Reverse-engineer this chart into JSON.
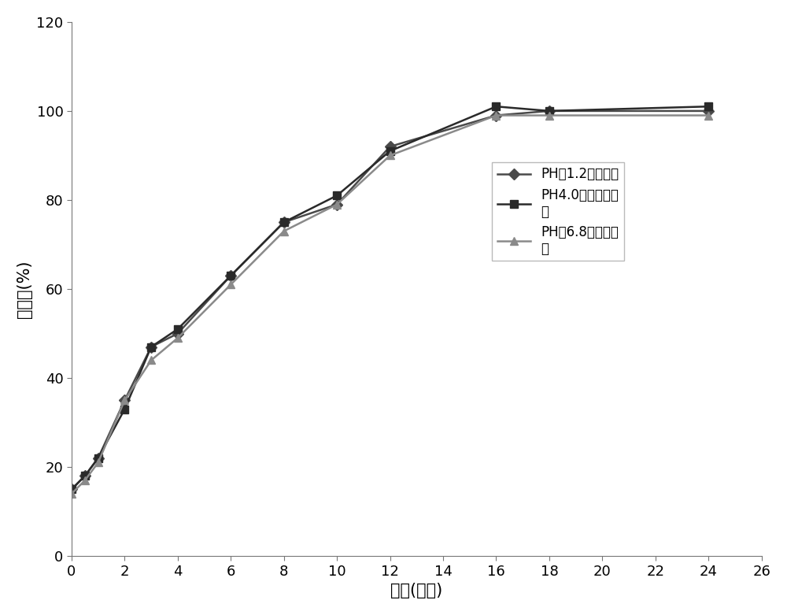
{
  "x": [
    0,
    0.5,
    1,
    2,
    3,
    4,
    6,
    8,
    10,
    12,
    16,
    18,
    24
  ],
  "series1_y": [
    15,
    18,
    22,
    35,
    47,
    50,
    63,
    75,
    79,
    92,
    99,
    100,
    100
  ],
  "series2_y": [
    15,
    18,
    22,
    33,
    47,
    51,
    63,
    75,
    81,
    91,
    101,
    100,
    101
  ],
  "series3_y": [
    14,
    17,
    21,
    35,
    44,
    49,
    61,
    73,
    79,
    90,
    99,
    99,
    99
  ],
  "series1_label": "PH值1.2盐酸溶液",
  "series2_label": "PH4.0醋酸盐缓冲\n液",
  "series3_label": "PH值6.8缓冲盐溶\n液",
  "series1_color": "#4a4a4a",
  "series2_color": "#2a2a2a",
  "series3_color": "#8a8a8a",
  "series1_marker": "D",
  "series2_marker": "s",
  "series3_marker": "^",
  "xlabel": "时间(小时)",
  "ylabel": "释放度(%)",
  "xlim": [
    0,
    26
  ],
  "ylim": [
    0,
    120
  ],
  "xticks": [
    0,
    2,
    4,
    6,
    8,
    10,
    12,
    14,
    16,
    18,
    20,
    22,
    24,
    26
  ],
  "yticks": [
    0,
    20,
    40,
    60,
    80,
    100,
    120
  ],
  "bg_color": "#ffffff",
  "linewidth": 1.8,
  "markersize": 7,
  "tick_fontsize": 13,
  "label_fontsize": 15,
  "legend_fontsize": 12
}
